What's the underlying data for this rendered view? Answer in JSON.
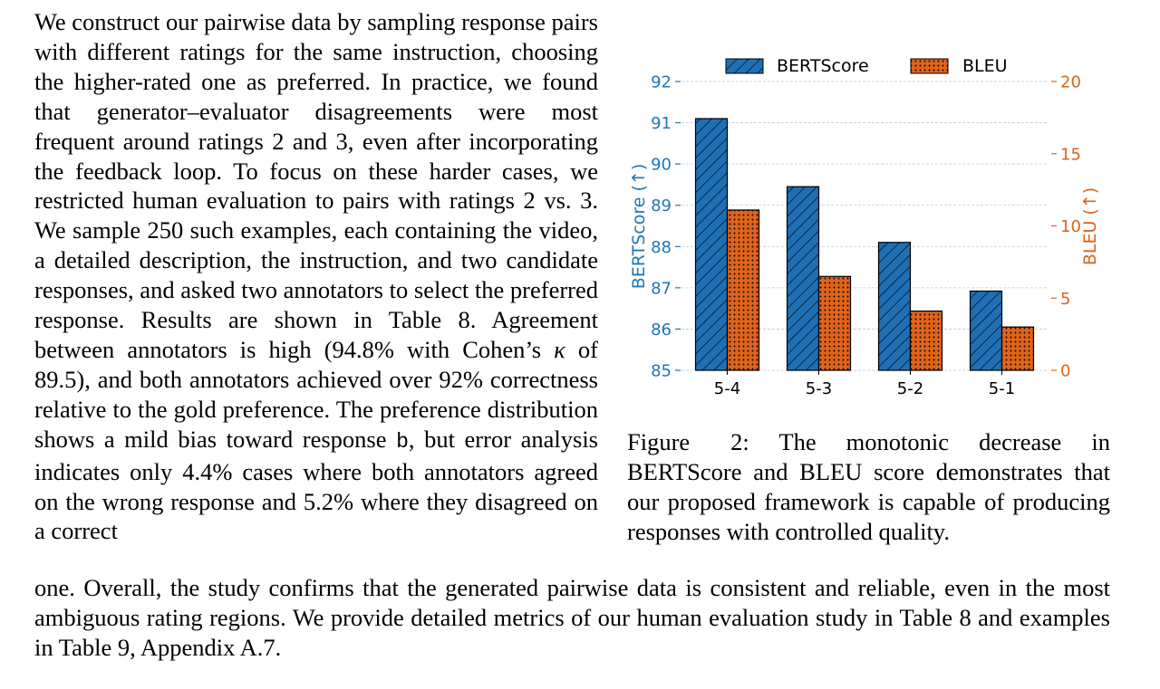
{
  "left_paragraph": {
    "segment_1": "We construct our pairwise data by sampling response pairs with different ratings for the same instruction, choosing the higher-rated one as preferred. In prac­tice, we found that generator–evaluator disagree­ments were most frequent around ratings 2 and 3, even after incorporating the feedback loop. To fo­cus on these harder cases, we restricted human eval­uation to pairs with ratings 2 vs. 3. We sample 250 such examples, each containing the video, a de­tailed description, the instruction, and two candidate responses, and asked two annotators to select the preferred response. Results are shown in Table 8. Agreement between annotators is high (94.8% with Cohen’s ",
    "kappa_symbol": "κ",
    "segment_2": " of 89.5), and both annotators achieved over 92% correctness relative to the gold preference. The preference distribution shows a mild bias toward response ",
    "code_b": "b",
    "segment_3": ", but error analysis indicates only 4.4% cases where both annotators agreed on the wrong re­sponse and 5.2% where they disagreed on a correct"
  },
  "bottom_paragraph": "one. Overall, the study confirms that the generated pairwise data is consistent and reliable, even in the most ambiguous rating regions. We provide detailed metrics of our human evaluation study in Table 8 and examples in Table 9, Appendix A.7.",
  "caption": {
    "label": "Figure 2:",
    "text": " The monotonic decrease in BERTScore and BLEU score demonstrates that our proposed framework is capable of producing responses with controlled quality."
  },
  "colors": {
    "bertscore": "#1f6fb5",
    "bertscore_axis": "#1f77b4",
    "bleu": "#e0641b",
    "bleu_axis": "#d9651a"
  },
  "chart_data": {
    "type": "bar",
    "title": "",
    "xlabel": "",
    "categories": [
      "5-4",
      "5-3",
      "5-2",
      "5-1"
    ],
    "series": [
      {
        "name": "BERTScore",
        "axis": "left",
        "values": [
          91.1,
          89.45,
          88.1,
          86.92
        ]
      },
      {
        "name": "BLEU",
        "axis": "right",
        "values": [
          11.1,
          6.5,
          4.1,
          3.0
        ]
      }
    ],
    "ylabel_left": "BERTScore (↑)",
    "ylabel_right": "BLEU (↑)",
    "ylim_left": [
      85,
      92
    ],
    "ylim_right": [
      0,
      20
    ],
    "yticks_left": [
      "85",
      "86",
      "87",
      "88",
      "89",
      "90",
      "91",
      "92"
    ],
    "yticks_right": [
      "0",
      "5",
      "10",
      "15",
      "20"
    ],
    "grid": true,
    "legend": "top-center"
  }
}
